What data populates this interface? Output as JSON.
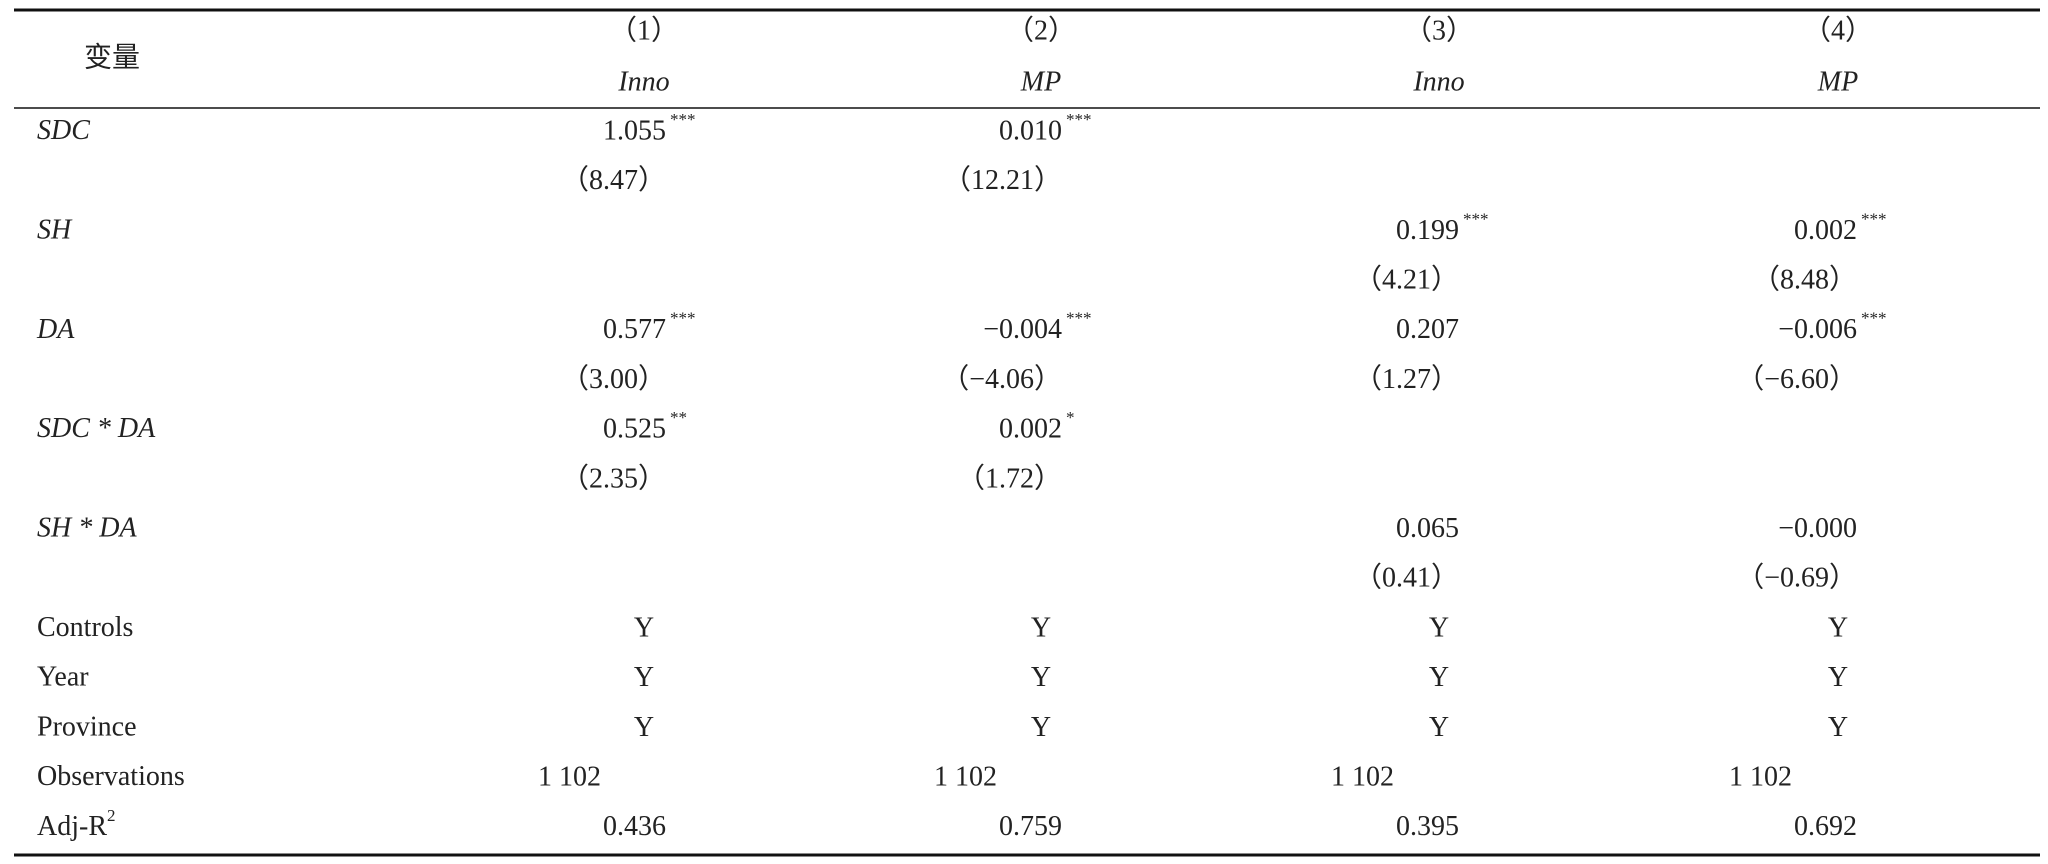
{
  "header": {
    "variable": "变量",
    "columns": [
      "（1）",
      "（2）",
      "（3）",
      "（4）"
    ],
    "dependent": [
      "Inno",
      "MP",
      "Inno",
      "MP"
    ]
  },
  "rows": [
    {
      "label": "SDC",
      "italic": true,
      "cells": [
        {
          "value": "1.055",
          "stars": "***"
        },
        {
          "value": "0.010",
          "stars": "***"
        },
        null,
        null
      ]
    },
    {
      "cells": [
        {
          "value": "（8.47）"
        },
        {
          "value": "（12.21）"
        },
        null,
        null
      ]
    },
    {
      "label": "SH",
      "italic": true,
      "cells": [
        null,
        null,
        {
          "value": "0.199",
          "stars": "***"
        },
        {
          "value": "0.002",
          "stars": "***"
        }
      ]
    },
    {
      "cells": [
        null,
        null,
        {
          "value": "（4.21）"
        },
        {
          "value": "（8.48）"
        }
      ]
    },
    {
      "label": "DA",
      "italic": true,
      "cells": [
        {
          "value": "0.577",
          "stars": "***"
        },
        {
          "value": "−0.004",
          "stars": "***"
        },
        {
          "value": "0.207"
        },
        {
          "value": "−0.006",
          "stars": "***"
        }
      ]
    },
    {
      "cells": [
        {
          "value": "（3.00）"
        },
        {
          "value": "（−4.06）"
        },
        {
          "value": "（1.27）"
        },
        {
          "value": "（−6.60）"
        }
      ]
    },
    {
      "label": "SDC * DA",
      "italic": true,
      "cells": [
        {
          "value": "0.525",
          "stars": "**"
        },
        {
          "value": "0.002",
          "stars": "*"
        },
        null,
        null
      ]
    },
    {
      "cells": [
        {
          "value": "（2.35）"
        },
        {
          "value": "（1.72）"
        },
        null,
        null
      ]
    },
    {
      "label": "SH * DA",
      "italic": true,
      "cells": [
        null,
        null,
        {
          "value": "0.065"
        },
        {
          "value": "−0.000"
        }
      ]
    },
    {
      "cells": [
        null,
        null,
        {
          "value": "（0.41）"
        },
        {
          "value": "（−0.69）"
        }
      ]
    },
    {
      "label": "Controls",
      "cells": [
        {
          "value": "Y"
        },
        {
          "value": "Y"
        },
        {
          "value": "Y"
        },
        {
          "value": "Y"
        }
      ]
    },
    {
      "label": "Year",
      "cells": [
        {
          "value": "Y"
        },
        {
          "value": "Y"
        },
        {
          "value": "Y"
        },
        {
          "value": "Y"
        }
      ]
    },
    {
      "label": "Province",
      "cells": [
        {
          "value": "Y"
        },
        {
          "value": "Y"
        },
        {
          "value": "Y"
        },
        {
          "value": "Y"
        }
      ]
    },
    {
      "label": "Observations",
      "cells": [
        {
          "value": "1 102"
        },
        {
          "value": "1 102"
        },
        {
          "value": "1 102"
        },
        {
          "value": "1 102"
        }
      ]
    },
    {
      "label": "Adj-R",
      "label_sup": "2",
      "cells": [
        {
          "value": "0.436"
        },
        {
          "value": "0.759"
        },
        {
          "value": "0.395"
        },
        {
          "value": "0.692"
        }
      ]
    }
  ]
}
